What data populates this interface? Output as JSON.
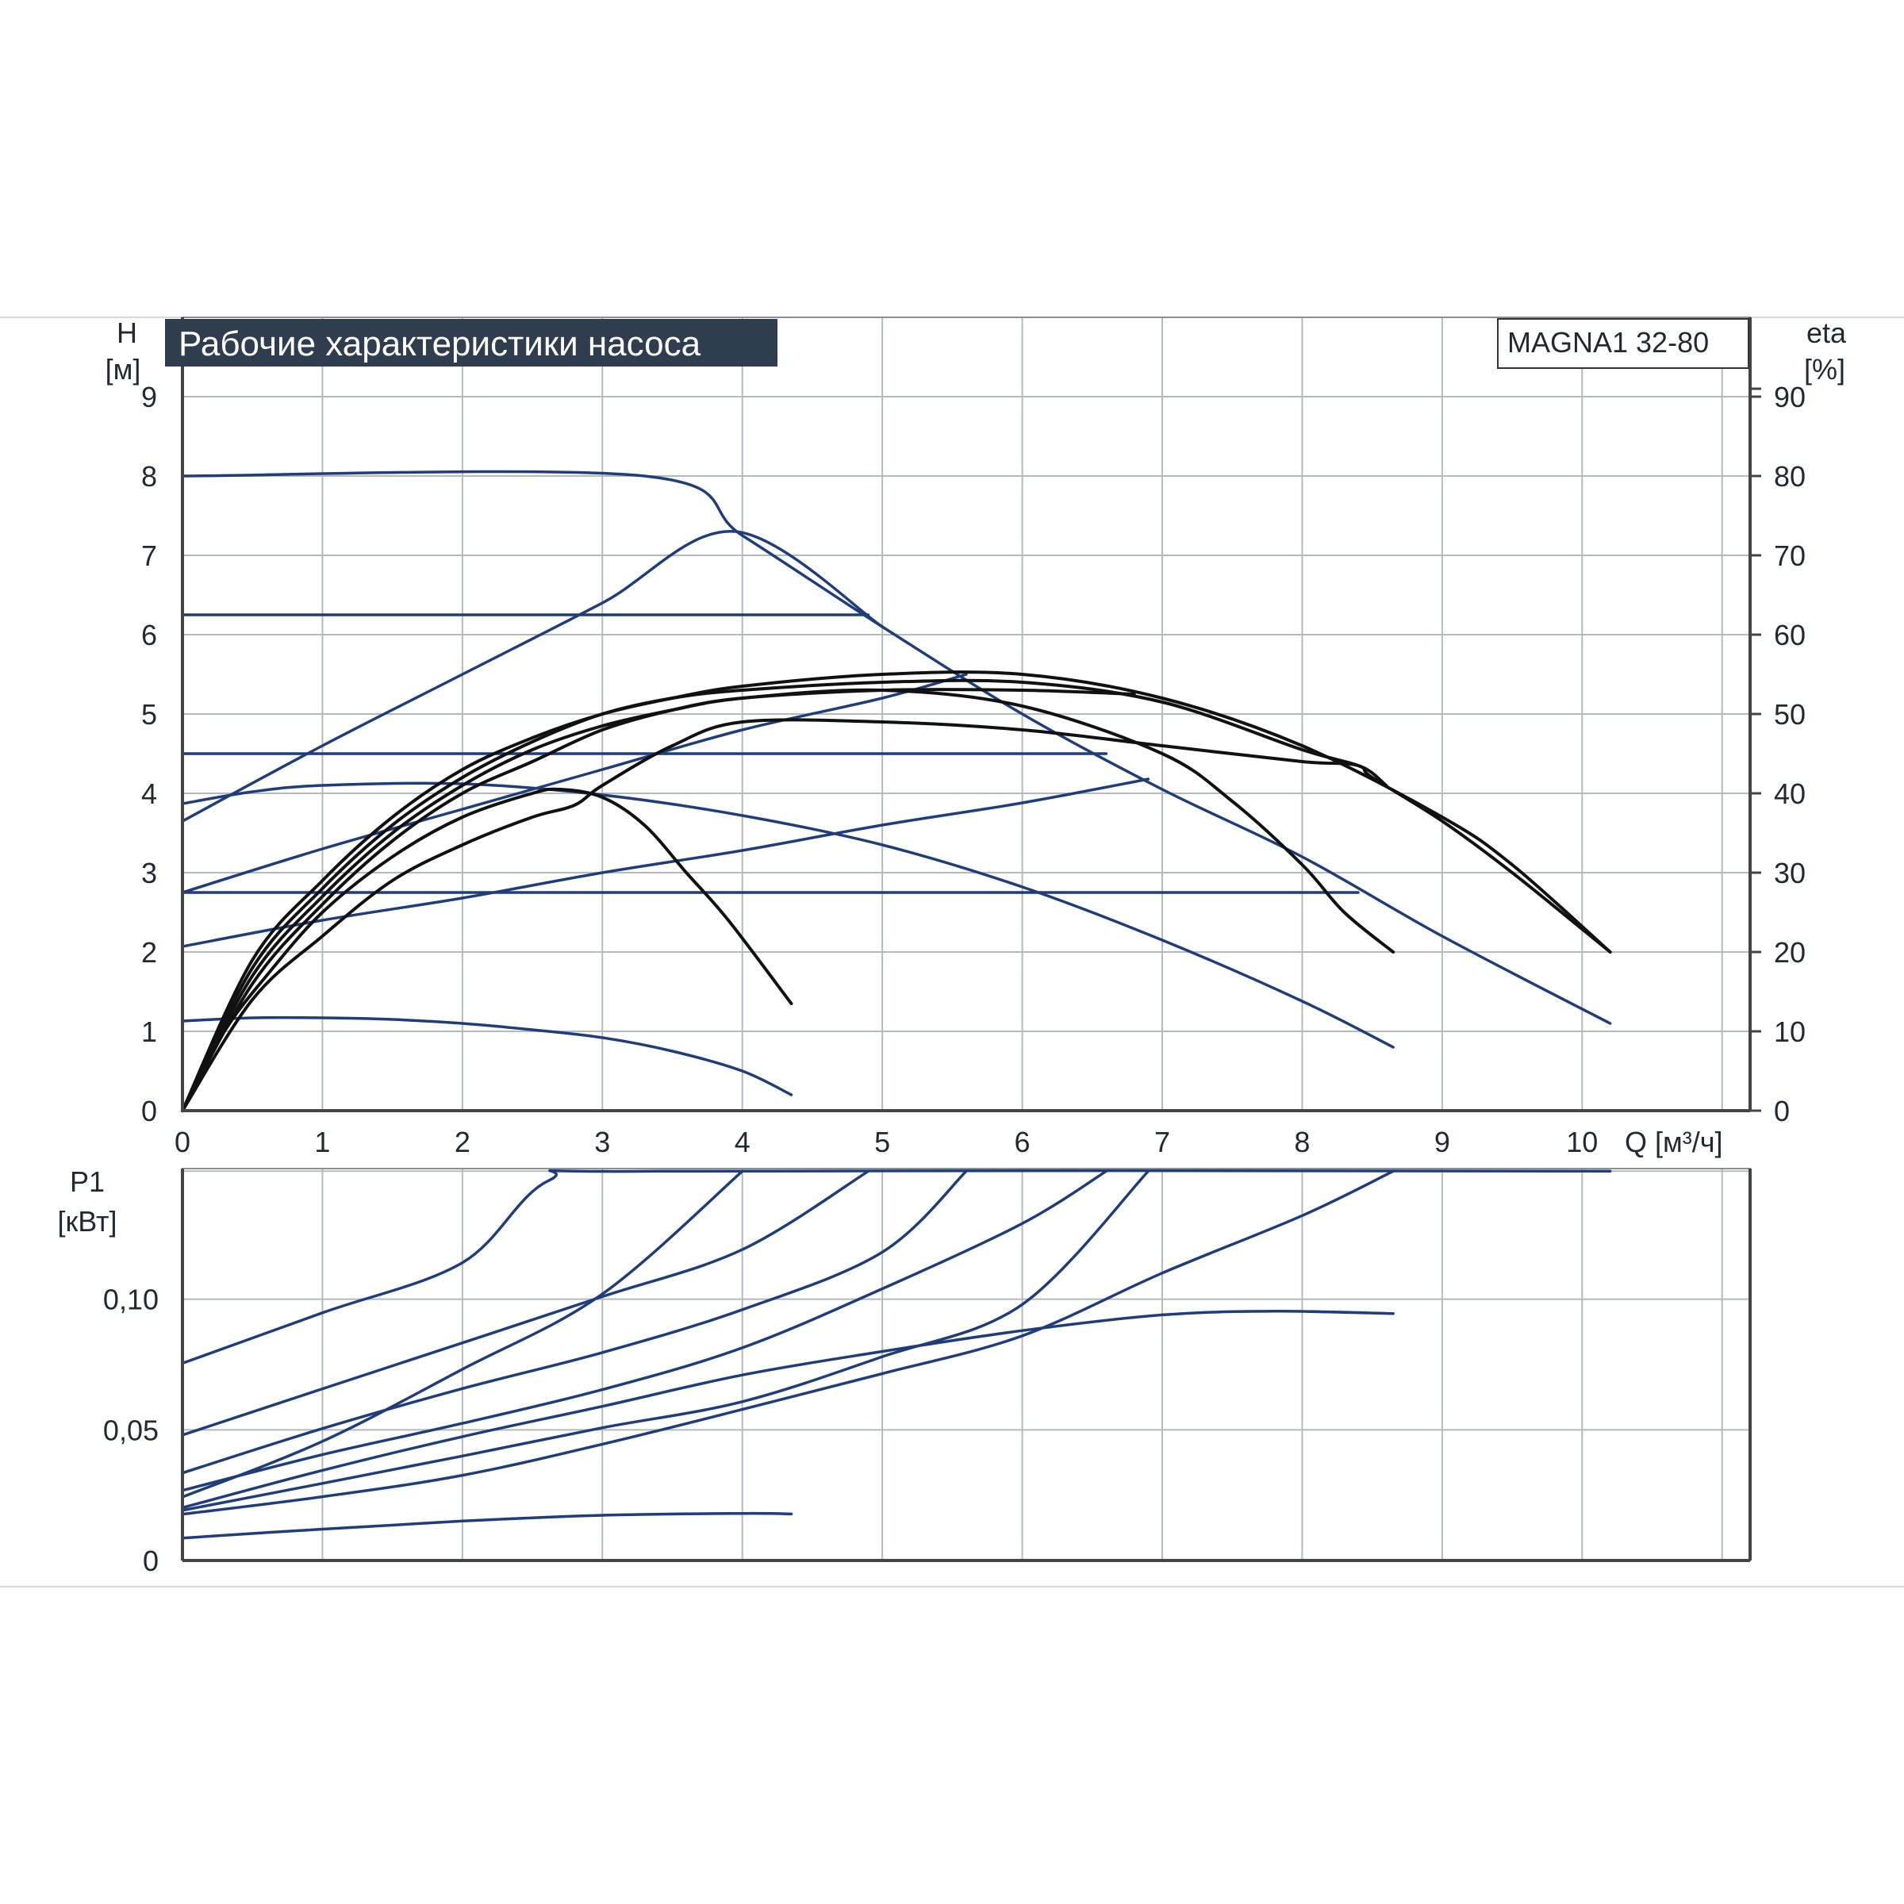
{
  "chart_data": [
    {
      "type": "line",
      "title": "Рабочие характеристики насоса",
      "model_label": "MAGNA1 32-80",
      "ylabel_symbol": "H",
      "ylabel_unit": "[м]",
      "y2label_symbol": "eta",
      "y2label_unit": "[%]",
      "xlabel": "Q [м³/ч]",
      "xlim": [
        0,
        11.2
      ],
      "ylim": [
        0,
        10
      ],
      "y2lim": [
        0,
        100
      ],
      "x_ticks": [
        "0",
        "1",
        "2",
        "3",
        "4",
        "5",
        "6",
        "7",
        "8",
        "9",
        "10"
      ],
      "y_ticks": [
        "0",
        "1",
        "2",
        "3",
        "4",
        "5",
        "6",
        "7",
        "8",
        "9"
      ],
      "y2_ticks": [
        "0",
        "10",
        "20",
        "30",
        "40",
        "50",
        "60",
        "70",
        "80",
        "90"
      ],
      "grid": true,
      "colors": {
        "head": "#1f3d7a",
        "efficiency": "#111111",
        "grid": "#b4b9be",
        "title_bg": "#2f3e4e"
      },
      "series": [
        {
          "axis": "y",
          "color": "#1f3d7a",
          "points": [
            [
              0,
              8.0
            ],
            [
              3.3,
              8.0
            ],
            [
              4.0,
              7.25
            ],
            [
              5.0,
              6.1
            ],
            [
              6.0,
              5.0
            ],
            [
              7.0,
              4.05
            ],
            [
              8.0,
              3.2
            ],
            [
              9.0,
              2.2
            ],
            [
              10.2,
              1.1
            ]
          ]
        },
        {
          "axis": "y",
          "color": "#1f3d7a",
          "points": [
            [
              0,
              3.65
            ],
            [
              1.0,
              4.6
            ],
            [
              2.0,
              5.5
            ],
            [
              3.0,
              6.4
            ],
            [
              3.95,
              7.3
            ],
            [
              5.0,
              6.1
            ]
          ]
        },
        {
          "axis": "y",
          "color": "#1f3d7a",
          "points": [
            [
              0,
              6.25
            ],
            [
              4.9,
              6.25
            ]
          ]
        },
        {
          "axis": "y",
          "color": "#1f3d7a",
          "points": [
            [
              0,
              2.75
            ],
            [
              1.0,
              3.3
            ],
            [
              2.0,
              3.8
            ],
            [
              3.0,
              4.3
            ],
            [
              4.0,
              4.8
            ],
            [
              5.0,
              5.2
            ],
            [
              5.6,
              5.5
            ]
          ]
        },
        {
          "axis": "y",
          "color": "#1f3d7a",
          "points": [
            [
              0,
              4.5
            ],
            [
              6.6,
              4.5
            ]
          ]
        },
        {
          "axis": "y",
          "color": "#1f3d7a",
          "points": [
            [
              0,
              2.07
            ],
            [
              1.0,
              2.4
            ],
            [
              2.0,
              2.68
            ],
            [
              3.0,
              3.0
            ],
            [
              4.0,
              3.28
            ],
            [
              5.0,
              3.6
            ],
            [
              6.0,
              3.88
            ],
            [
              6.9,
              4.18
            ]
          ]
        },
        {
          "axis": "y",
          "color": "#1f3d7a",
          "points": [
            [
              0,
              2.75
            ],
            [
              8.4,
              2.75
            ]
          ]
        },
        {
          "axis": "y",
          "color": "#1f3d7a",
          "points": [
            [
              0,
              3.87
            ],
            [
              0.5,
              4.02
            ],
            [
              1.0,
              4.1
            ],
            [
              2.0,
              4.12
            ],
            [
              3.0,
              3.98
            ],
            [
              4.0,
              3.72
            ],
            [
              5.0,
              3.35
            ],
            [
              6.0,
              2.82
            ],
            [
              7.0,
              2.15
            ],
            [
              8.0,
              1.38
            ],
            [
              8.65,
              0.8
            ]
          ]
        },
        {
          "axis": "y",
          "color": "#1f3d7a",
          "points": [
            [
              0,
              1.13
            ],
            [
              0.5,
              1.17
            ],
            [
              1.0,
              1.17
            ],
            [
              1.5,
              1.15
            ],
            [
              2.0,
              1.1
            ],
            [
              2.5,
              1.02
            ],
            [
              3.0,
              0.92
            ],
            [
              3.5,
              0.75
            ],
            [
              4.0,
              0.5
            ],
            [
              4.35,
              0.2
            ]
          ]
        },
        {
          "axis": "y2",
          "color": "#111111",
          "points": [
            [
              0,
              0
            ],
            [
              0.3,
              10
            ],
            [
              0.6,
              17
            ],
            [
              1.0,
              25
            ],
            [
              1.5,
              32
            ],
            [
              2.0,
              37
            ],
            [
              2.5,
              40
            ],
            [
              2.7,
              40.5
            ],
            [
              3.0,
              39.5
            ],
            [
              3.3,
              36
            ],
            [
              3.6,
              30
            ],
            [
              3.9,
              24
            ],
            [
              4.35,
              13.5
            ]
          ]
        },
        {
          "axis": "y2",
          "color": "#111111",
          "points": [
            [
              0,
              0
            ],
            [
              0.5,
              14
            ],
            [
              1.0,
              22
            ],
            [
              1.5,
              29
            ],
            [
              2.0,
              33.5
            ],
            [
              2.5,
              37
            ],
            [
              2.8,
              38.5
            ],
            [
              3.0,
              41
            ],
            [
              3.5,
              46
            ],
            [
              4.0,
              49
            ],
            [
              5.0,
              49
            ],
            [
              6.0,
              48
            ],
            [
              7.0,
              46
            ],
            [
              8.0,
              44
            ],
            [
              8.4,
              43.5
            ],
            [
              8.6,
              41
            ]
          ]
        },
        {
          "axis": "y2",
          "color": "#111111",
          "points": [
            [
              0,
              0
            ],
            [
              0.5,
              16
            ],
            [
              1.0,
              26
            ],
            [
              1.5,
              34
            ],
            [
              2.0,
              40
            ],
            [
              2.5,
              44
            ],
            [
              3.0,
              48
            ],
            [
              3.5,
              50.5
            ],
            [
              4.0,
              52
            ],
            [
              5.0,
              53
            ],
            [
              6.0,
              51
            ],
            [
              7.0,
              45
            ],
            [
              7.5,
              39
            ],
            [
              8.0,
              31
            ],
            [
              8.3,
              25
            ],
            [
              8.65,
              20
            ]
          ]
        },
        {
          "axis": "y2",
          "color": "#111111",
          "points": [
            [
              0,
              0
            ],
            [
              0.5,
              17
            ],
            [
              1.0,
              27
            ],
            [
              1.5,
              35
            ],
            [
              2.0,
              41
            ],
            [
              2.5,
              45.5
            ],
            [
              3.0,
              48.5
            ],
            [
              3.5,
              50.5
            ],
            [
              4.0,
              52
            ],
            [
              5.0,
              53
            ],
            [
              6.0,
              53
            ],
            [
              6.8,
              52.5
            ]
          ]
        },
        {
          "axis": "y2",
          "color": "#111111",
          "points": [
            [
              0,
              0
            ],
            [
              0.5,
              18
            ],
            [
              1.0,
              28
            ],
            [
              1.5,
              36
            ],
            [
              2.0,
              42
            ],
            [
              2.5,
              46.5
            ],
            [
              3.0,
              50
            ],
            [
              3.5,
              52
            ],
            [
              4.0,
              53
            ],
            [
              5.0,
              54
            ],
            [
              6.0,
              54
            ],
            [
              7.0,
              51.5
            ],
            [
              8.0,
              45.5
            ],
            [
              8.4,
              43.5
            ],
            [
              8.5,
              42
            ],
            [
              9.0,
              36.5
            ],
            [
              9.5,
              30
            ],
            [
              10.2,
              20
            ]
          ]
        },
        {
          "axis": "y2",
          "color": "#111111",
          "points": [
            [
              0,
              0
            ],
            [
              0.5,
              19
            ],
            [
              1.0,
              29
            ],
            [
              1.5,
              37
            ],
            [
              2.0,
              43
            ],
            [
              2.5,
              47
            ],
            [
              3.0,
              50
            ],
            [
              3.5,
              52
            ],
            [
              4.0,
              53.5
            ],
            [
              5.0,
              55
            ],
            [
              6.0,
              55
            ],
            [
              7.0,
              52
            ],
            [
              8.0,
              46
            ],
            [
              9.0,
              37
            ],
            [
              9.5,
              31
            ],
            [
              10.2,
              20
            ]
          ]
        }
      ]
    },
    {
      "type": "line",
      "ylabel_symbol": "P1",
      "ylabel_unit": "[кВт]",
      "xlim": [
        0,
        11.2
      ],
      "ylim": [
        0,
        0.15
      ],
      "y_ticks": [
        "0",
        "0,05",
        "0,10"
      ],
      "grid": true,
      "colors": {
        "power": "#1f3d7a"
      },
      "series": [
        {
          "color": "#1f3d7a",
          "points": [
            [
              0,
              0.0755
            ],
            [
              1.0,
              0.0948
            ],
            [
              2.0,
              0.114
            ],
            [
              2.62,
              0.1455
            ],
            [
              3.4,
              0.149
            ],
            [
              10.2,
              0.149
            ]
          ]
        },
        {
          "color": "#1f3d7a",
          "points": [
            [
              0,
              0.048
            ],
            [
              1.0,
              0.0657
            ],
            [
              2.0,
              0.0833
            ],
            [
              3.0,
              0.101
            ],
            [
              4.0,
              0.119
            ],
            [
              4.9,
              0.149
            ]
          ]
        },
        {
          "color": "#1f3d7a",
          "points": [
            [
              0,
              0.0243
            ],
            [
              1.0,
              0.0456
            ],
            [
              2.0,
              0.0732
            ],
            [
              3.0,
              0.102
            ],
            [
              4.0,
              0.149
            ]
          ]
        },
        {
          "color": "#1f3d7a",
          "points": [
            [
              0,
              0.0335
            ],
            [
              1.0,
              0.0505
            ],
            [
              2.0,
              0.0658
            ],
            [
              3.0,
              0.0796
            ],
            [
              4.0,
              0.096
            ],
            [
              5.0,
              0.118
            ],
            [
              5.6,
              0.149
            ]
          ]
        },
        {
          "color": "#1f3d7a",
          "points": [
            [
              0,
              0.0268
            ],
            [
              1.0,
              0.0405
            ],
            [
              2.0,
              0.0525
            ],
            [
              3.0,
              0.0654
            ],
            [
              4.0,
              0.0814
            ],
            [
              5.0,
              0.104
            ],
            [
              6.0,
              0.129
            ],
            [
              6.6,
              0.149
            ]
          ]
        },
        {
          "color": "#1f3d7a",
          "points": [
            [
              0,
              0.0192
            ],
            [
              1.0,
              0.0295
            ],
            [
              2.0,
              0.04
            ],
            [
              3.0,
              0.0508
            ],
            [
              4.0,
              0.0608
            ],
            [
              5.0,
              0.078
            ],
            [
              6.0,
              0.098
            ],
            [
              6.9,
              0.149
            ]
          ]
        },
        {
          "color": "#1f3d7a",
          "points": [
            [
              0,
              0.0202
            ],
            [
              1.0,
              0.0345
            ],
            [
              2.0,
              0.0474
            ],
            [
              3.0,
              0.059
            ],
            [
              4.0,
              0.071
            ],
            [
              5.0,
              0.08
            ],
            [
              6.0,
              0.088
            ],
            [
              7.0,
              0.094
            ],
            [
              7.8,
              0.0954
            ],
            [
              8.65,
              0.0945
            ]
          ]
        },
        {
          "color": "#1f3d7a",
          "points": [
            [
              0,
              0.0177
            ],
            [
              1.0,
              0.0244
            ],
            [
              2.0,
              0.0326
            ],
            [
              3.0,
              0.0445
            ],
            [
              4.0,
              0.0578
            ],
            [
              5.0,
              0.0715
            ],
            [
              6.0,
              0.086
            ],
            [
              7.0,
              0.11
            ],
            [
              8.0,
              0.132
            ],
            [
              8.65,
              0.149
            ]
          ]
        },
        {
          "color": "#1f3d7a",
          "points": [
            [
              0,
              0.0086
            ],
            [
              1.0,
              0.012
            ],
            [
              2.0,
              0.0151
            ],
            [
              3.0,
              0.0173
            ],
            [
              4.0,
              0.018
            ],
            [
              4.35,
              0.0178
            ]
          ]
        }
      ]
    }
  ]
}
